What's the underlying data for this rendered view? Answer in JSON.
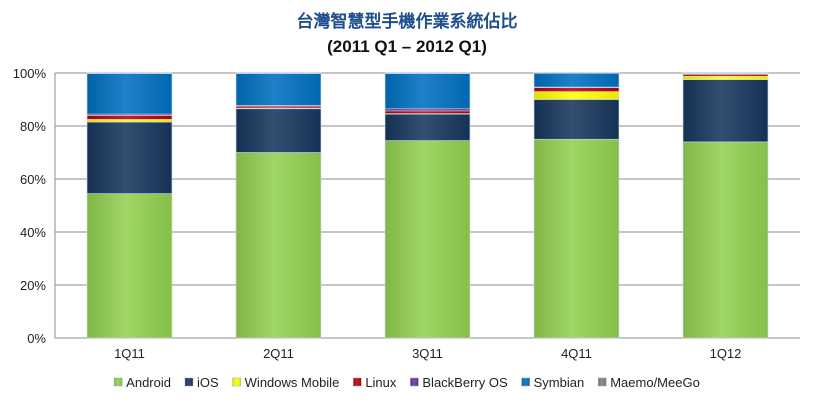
{
  "chart_data": {
    "type": "bar",
    "stacked": true,
    "title": "台灣智慧型手機作業系統佔比",
    "subtitle": "(2011 Q1 – 2012 Q1)",
    "categories": [
      "1Q11",
      "2Q11",
      "3Q11",
      "4Q11",
      "1Q12"
    ],
    "ylim": [
      0,
      100
    ],
    "yticks": [
      "0%",
      "20%",
      "40%",
      "60%",
      "80%",
      "100%"
    ],
    "grid": true,
    "legend_position": "bottom",
    "series": [
      {
        "name": "Android",
        "color": "#92D050",
        "values": [
          54.5,
          70,
          74.5,
          75,
          74
        ]
      },
      {
        "name": "iOS",
        "color": "#17365D",
        "values": [
          27,
          16.5,
          10,
          15,
          23.5
        ]
      },
      {
        "name": "Windows Mobile",
        "color": "#FFFF00",
        "values": [
          1,
          0.3,
          0.2,
          3,
          1.3
        ]
      },
      {
        "name": "Linux",
        "color": "#C00000",
        "values": [
          1.5,
          0.7,
          1,
          1.5,
          0.7
        ]
      },
      {
        "name": "BlackBerry OS",
        "color": "#7030A0",
        "values": [
          0.5,
          0.3,
          0.8,
          0.2,
          0.2
        ]
      },
      {
        "name": "Symbian",
        "color": "#0070C0",
        "values": [
          15.3,
          12,
          13.3,
          5.2,
          0.2
        ]
      },
      {
        "name": "Maemo/MeeGo",
        "color": "#808080",
        "values": [
          0.2,
          0.2,
          0.2,
          0.1,
          0.1
        ]
      }
    ]
  }
}
